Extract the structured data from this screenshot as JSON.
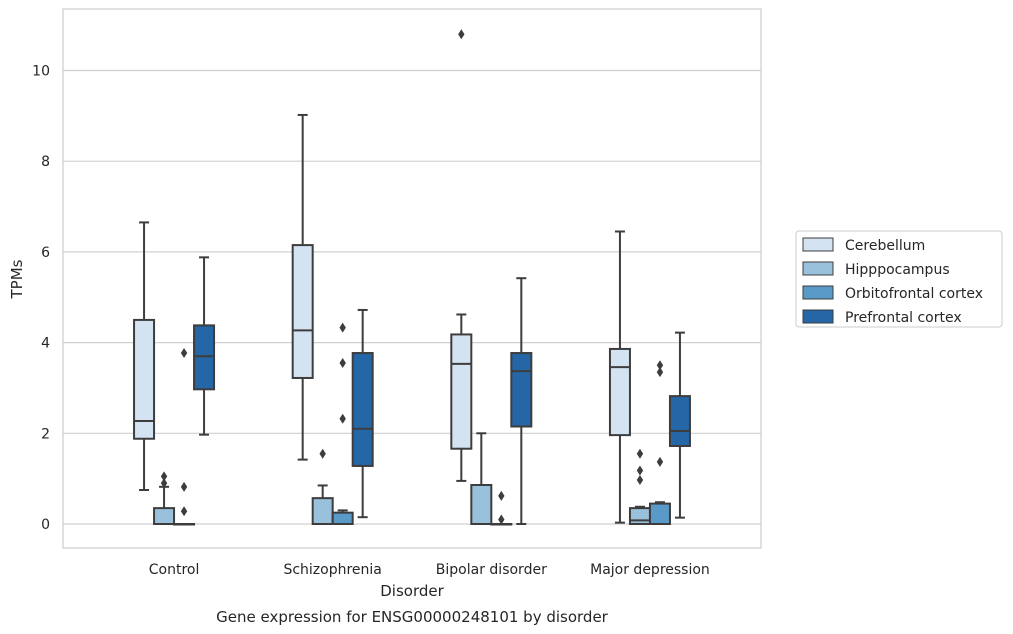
{
  "chart_data": {
    "type": "box",
    "caption": "Gene expression for ENSG00000248101 by disorder",
    "xlabel": "Disorder",
    "ylabel": "TPMs",
    "ylim": [
      -0.5,
      11.4
    ],
    "yticks": [
      0,
      2,
      4,
      6,
      8,
      10
    ],
    "grid": "horizontal",
    "legend_position": "right",
    "categories": [
      "Control",
      "Schizophrenia",
      "Bipolar disorder",
      "Major depression"
    ],
    "series": [
      {
        "name": "Cerebellum",
        "color": "#d4e3f1",
        "boxes": [
          {
            "whisker_low": 0.75,
            "q1": 1.88,
            "median": 2.27,
            "q3": 4.5,
            "whisker_high": 6.65,
            "outliers": []
          },
          {
            "whisker_low": 1.42,
            "q1": 3.22,
            "median": 4.27,
            "q3": 6.15,
            "whisker_high": 9.02,
            "outliers": []
          },
          {
            "whisker_low": 0.95,
            "q1": 1.66,
            "median": 3.53,
            "q3": 4.18,
            "whisker_high": 4.62,
            "outliers": [
              10.8
            ]
          },
          {
            "whisker_low": 0.03,
            "q1": 1.96,
            "median": 3.46,
            "q3": 3.86,
            "whisker_high": 6.45,
            "outliers": []
          }
        ]
      },
      {
        "name": "Hipppocampus",
        "color": "#9ac1dc",
        "boxes": [
          {
            "whisker_low": 0.0,
            "q1": 0.0,
            "median": 0.0,
            "q3": 0.35,
            "whisker_high": 0.82,
            "outliers": [
              0.9,
              1.05
            ]
          },
          {
            "whisker_low": 0.0,
            "q1": 0.0,
            "median": 0.0,
            "q3": 0.57,
            "whisker_high": 0.85,
            "outliers": [
              1.55
            ]
          },
          {
            "whisker_low": 0.0,
            "q1": 0.0,
            "median": 0.0,
            "q3": 0.86,
            "whisker_high": 2.0,
            "outliers": []
          },
          {
            "whisker_low": 0.0,
            "q1": 0.0,
            "median": 0.08,
            "q3": 0.35,
            "whisker_high": 0.38,
            "outliers": [
              0.97,
              1.18,
              1.55
            ]
          }
        ]
      },
      {
        "name": "Orbitofrontal cortex",
        "color": "#5a9ac8",
        "boxes": [
          {
            "whisker_low": 0.0,
            "q1": 0.0,
            "median": 0.0,
            "q3": 0.0,
            "whisker_high": 0.0,
            "outliers": [
              0.28,
              0.82,
              3.77
            ]
          },
          {
            "whisker_low": 0.0,
            "q1": 0.0,
            "median": 0.0,
            "q3": 0.25,
            "whisker_high": 0.3,
            "outliers": [
              2.32,
              3.55,
              4.33
            ]
          },
          {
            "whisker_low": 0.0,
            "q1": 0.0,
            "median": 0.0,
            "q3": 0.0,
            "whisker_high": 0.0,
            "outliers": [
              0.1,
              0.62
            ]
          },
          {
            "whisker_low": 0.0,
            "q1": 0.0,
            "median": 0.0,
            "q3": 0.45,
            "whisker_high": 0.48,
            "outliers": [
              1.37,
              3.35,
              3.5
            ]
          }
        ]
      },
      {
        "name": "Prefrontal cortex",
        "color": "#2466a6",
        "boxes": [
          {
            "whisker_low": 1.97,
            "q1": 2.97,
            "median": 3.7,
            "q3": 4.38,
            "whisker_high": 5.88,
            "outliers": []
          },
          {
            "whisker_low": 0.15,
            "q1": 1.28,
            "median": 2.1,
            "q3": 3.77,
            "whisker_high": 4.72,
            "outliers": []
          },
          {
            "whisker_low": 0.0,
            "q1": 2.15,
            "median": 3.37,
            "q3": 3.77,
            "whisker_high": 5.42,
            "outliers": []
          },
          {
            "whisker_low": 0.14,
            "q1": 1.72,
            "median": 2.05,
            "q3": 2.82,
            "whisker_high": 4.22,
            "outliers": []
          }
        ]
      }
    ]
  }
}
